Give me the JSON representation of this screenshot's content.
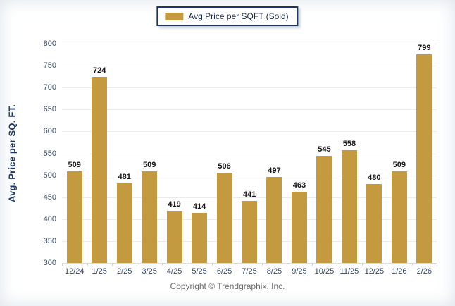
{
  "legend": {
    "label": "Avg Price per SQFT (Sold)",
    "swatch_color": "#c49a40",
    "border_color": "#1e355e"
  },
  "footer": {
    "text": "Copyright © Trendgraphix, Inc."
  },
  "colors": {
    "bar": "#c49a40",
    "gridline": "#ececec",
    "axis_text": "#3d4d63",
    "y_axis_title": "#1f3864",
    "value_label": "#141414"
  },
  "chart_data": {
    "type": "bar",
    "title": "",
    "categories": [
      "12/24",
      "1/25",
      "2/25",
      "3/25",
      "4/25",
      "5/25",
      "6/25",
      "7/25",
      "8/25",
      "9/25",
      "10/25",
      "11/25",
      "12/25",
      "1/26",
      "2/26"
    ],
    "values": [
      509,
      724,
      481,
      509,
      419,
      414,
      506,
      441,
      497,
      463,
      545,
      558,
      480,
      509,
      799
    ],
    "series_name": "Avg Price per SQFT (Sold)",
    "xlabel": "",
    "ylabel": "Avg. Price per SQ. FT.",
    "ylim": [
      300,
      800
    ],
    "ytick_step": 50,
    "yticks": [
      300,
      350,
      400,
      450,
      500,
      550,
      600,
      650,
      700,
      750,
      800
    ],
    "grid": true,
    "legend_position": "top-center",
    "value_labels": true
  }
}
